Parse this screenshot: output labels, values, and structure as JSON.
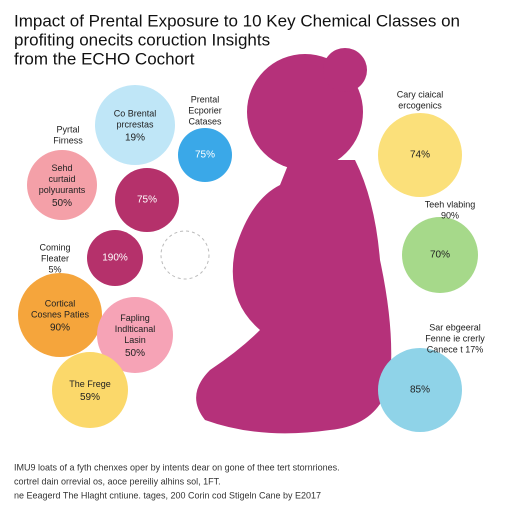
{
  "title": [
    "Impact of Prental Exposure to 10 Key Chemical Classes on",
    "profiting onecits coruction Insights",
    "from the ECHO Cochort"
  ],
  "bubbles": [
    {
      "label": [
        "Co Brental",
        "prcrestas"
      ],
      "value": "19%"
    },
    {
      "label": [
        "Prental",
        "Ecporier",
        "Catases"
      ],
      "value": "75%"
    },
    {
      "label": [
        "Pyrtal",
        "Firness"
      ],
      "value": null
    },
    {
      "label": [
        "Sehd",
        "curtaid",
        "polyuurants"
      ],
      "value": "50%"
    },
    {
      "label": [],
      "value": "75%"
    },
    {
      "label": [
        "Coming",
        "Fleater"
      ],
      "value": "5%"
    },
    {
      "label": [],
      "value": "190%"
    },
    {
      "label": [
        "Cortical",
        "Cosnes Paties"
      ],
      "value": "90%"
    },
    {
      "label": [
        "Fapling",
        "Indlticanal",
        "Lasin"
      ],
      "value": "50%"
    },
    {
      "label": [
        "The Frege"
      ],
      "value": "59%"
    },
    {
      "label": [
        "Cary ciaical",
        "ercogenics"
      ],
      "value": "74%"
    },
    {
      "label": [
        "Teeh vlabing",
        "90%"
      ],
      "value": "70%"
    },
    {
      "label": [
        "Sar ebgeeral",
        "Fenne ie crerly",
        "Canece t 17%"
      ],
      "value": "85%"
    }
  ],
  "footer": [
    "IMU9 loats of a fyth chenxes oper by intents dear on gone of thee tert stornriones.",
    "cortrel dain orrevial os, aoce pereiliy alhins sol, 1FT.",
    "ne Eeagerd The Hlaght cntiune. tages, 200 Corin cod Stigeln Cane by E2017"
  ]
}
